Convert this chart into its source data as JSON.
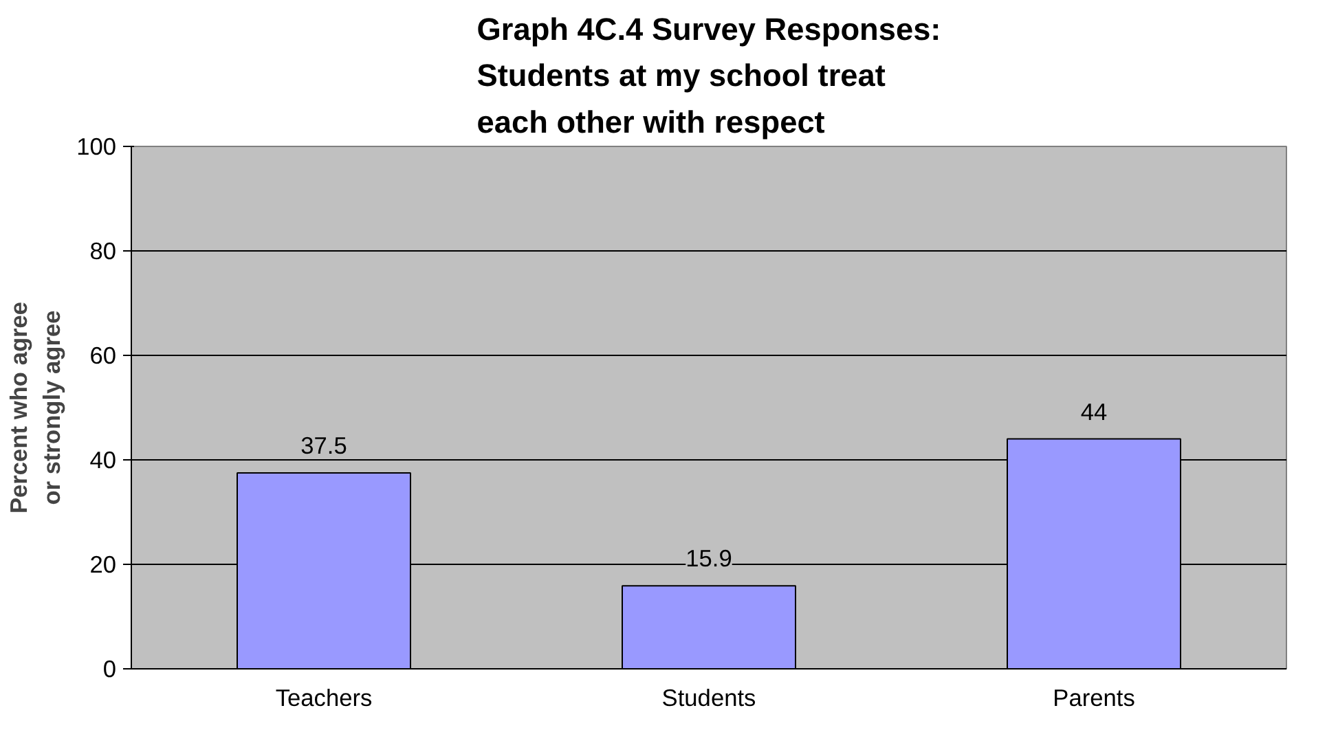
{
  "chart_data": {
    "type": "bar",
    "title": "Graph 4C.4 Survey Responses:\nStudents at my school treat\neach other with respect",
    "ylabel": "Percent who agree\nor strongly agree",
    "categories": [
      "Teachers",
      "Students",
      "Parents"
    ],
    "values": [
      37.5,
      15.9,
      44
    ],
    "color": "#9999ff",
    "ylim": [
      0,
      100
    ],
    "yticks": [
      0,
      20,
      40,
      60,
      80,
      100
    ],
    "grid": "y",
    "data_labels": true
  }
}
